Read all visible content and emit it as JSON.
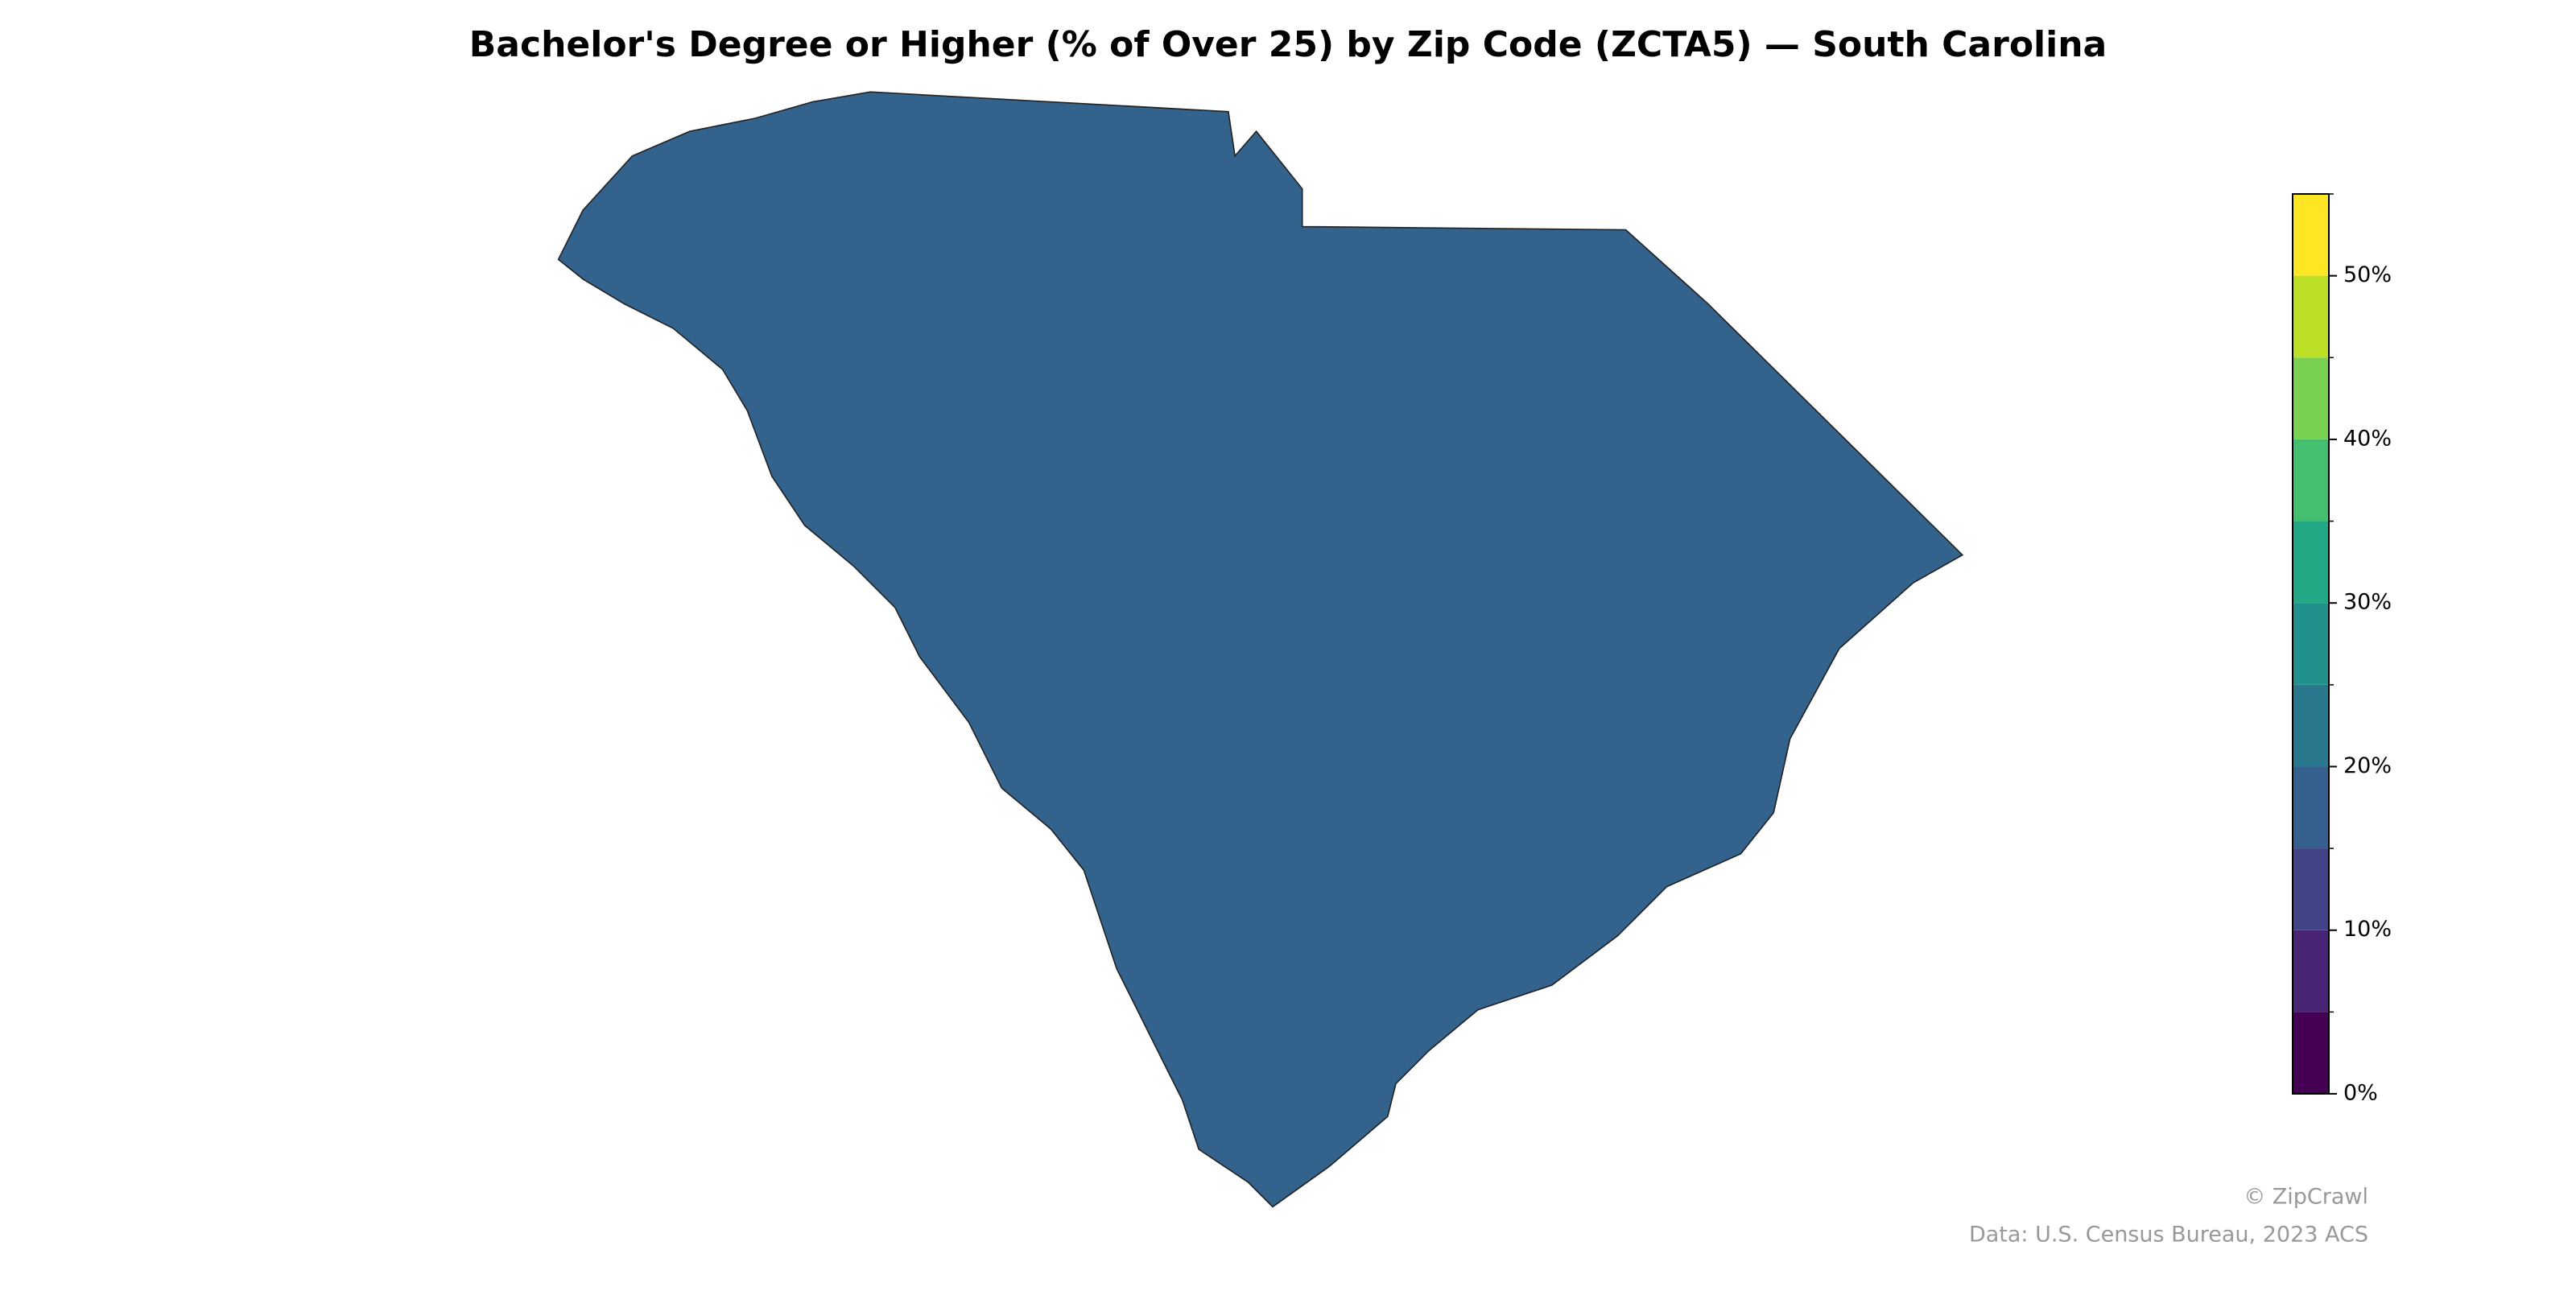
{
  "title": "Bachelor's Degree or Higher (% of Over 25) by Zip Code (ZCTA5) — South Carolina",
  "colorbar": {
    "ylim": [
      0,
      55
    ],
    "bins": [
      0,
      5,
      10,
      15,
      20,
      25,
      30,
      35,
      40,
      45,
      50,
      55
    ],
    "colors": [
      "#440154",
      "#482475",
      "#414487",
      "#355f8d",
      "#2a788e",
      "#21918c",
      "#22a884",
      "#44bf70",
      "#7ad151",
      "#bddf26",
      "#fde725"
    ],
    "yticks": [
      {
        "value": 0,
        "label": "0%"
      },
      {
        "value": 10,
        "label": "10%"
      },
      {
        "value": 20,
        "label": "20%"
      },
      {
        "value": 30,
        "label": "30%"
      },
      {
        "value": 40,
        "label": "40%"
      },
      {
        "value": 50,
        "label": "50%"
      }
    ],
    "minor_yticks": [
      5,
      15,
      25,
      35,
      45,
      55
    ]
  },
  "footer": {
    "credit": "© ZipCrawl",
    "source": "Data: U.S. Census Bureau, 2023 ACS"
  }
}
